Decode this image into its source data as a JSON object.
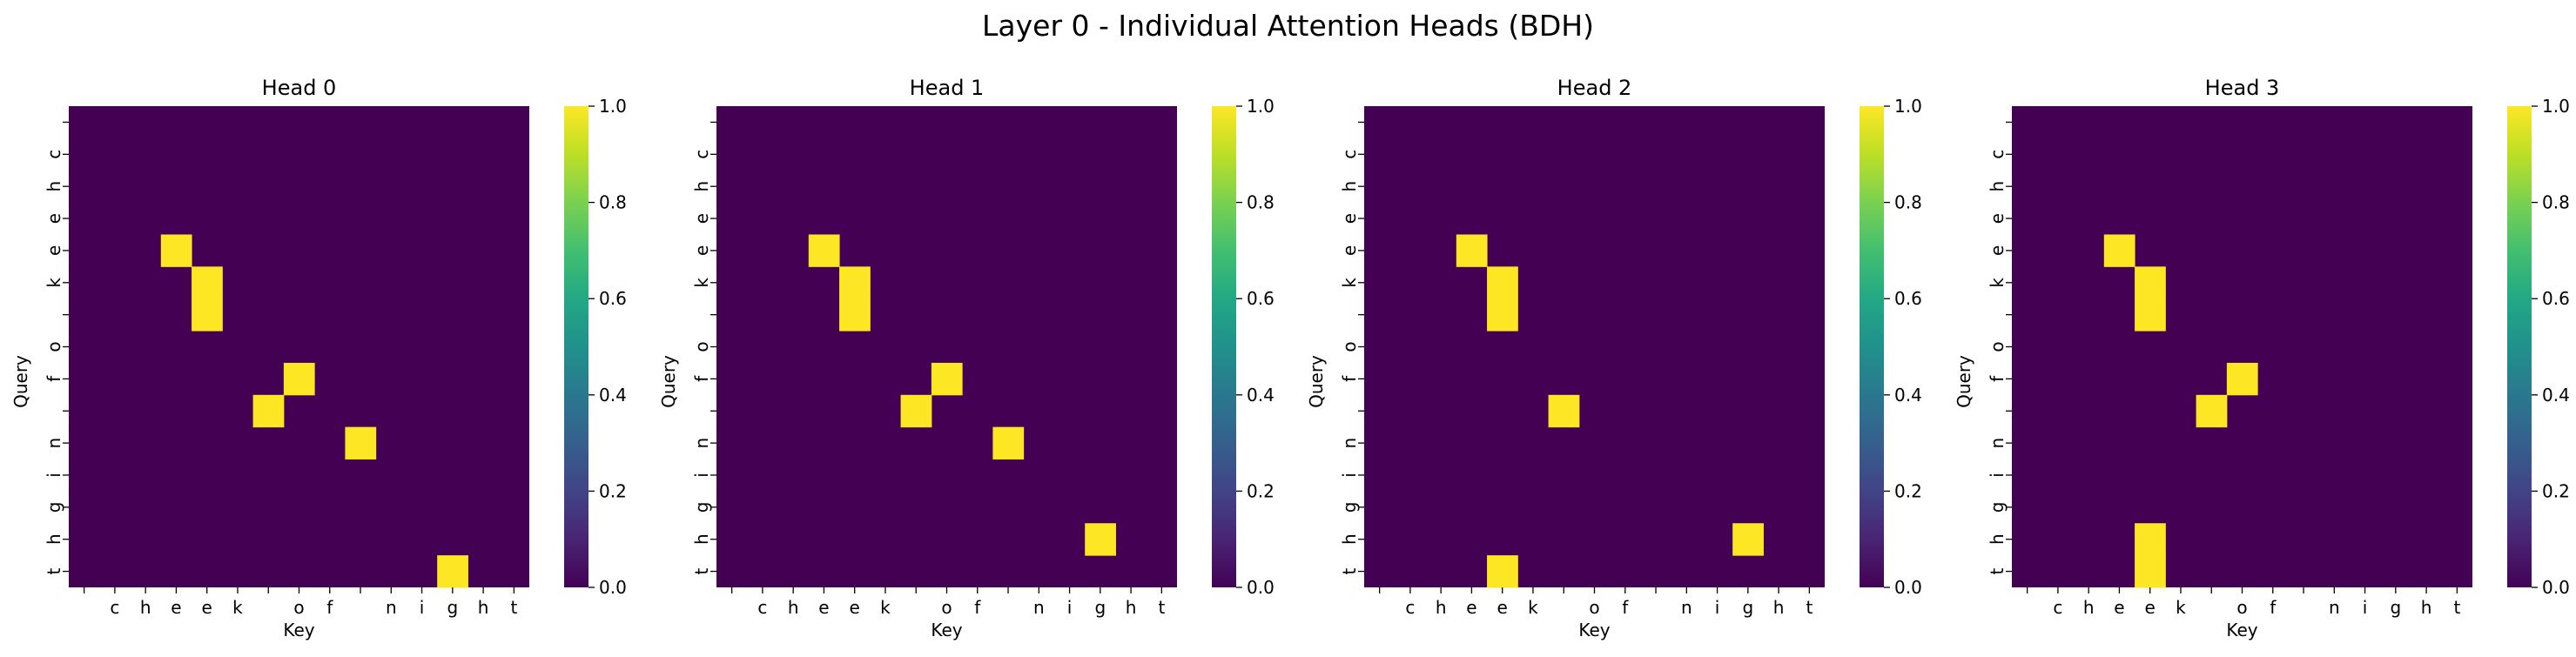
{
  "title": "Layer 0 - Individual Attention Heads (BDH)",
  "chart_data": [
    {
      "type": "heatmap",
      "title": "Head 0",
      "xlabel": "Key",
      "ylabel": "Query",
      "x_tokens": [
        " ",
        "c",
        "h",
        "e",
        "e",
        "k",
        " ",
        "o",
        "f",
        " ",
        "n",
        "i",
        "g",
        "h",
        "t"
      ],
      "y_tokens": [
        " ",
        "c",
        "h",
        "e",
        "e",
        "k",
        " ",
        "o",
        "f",
        " ",
        "n",
        "i",
        "g",
        "h",
        "t"
      ],
      "colorbar": {
        "colormap": "viridis",
        "range": [
          0.0,
          1.0
        ],
        "ticks": [
          "0.0",
          "0.2",
          "0.4",
          "0.6",
          "0.8",
          "1.0"
        ]
      },
      "nonzero_cells": [
        {
          "query": 4,
          "key": 3,
          "value": 1.0
        },
        {
          "query": 5,
          "key": 4,
          "value": 1.0
        },
        {
          "query": 6,
          "key": 4,
          "value": 1.0
        },
        {
          "query": 8,
          "key": 7,
          "value": 1.0
        },
        {
          "query": 9,
          "key": 6,
          "value": 1.0
        },
        {
          "query": 10,
          "key": 9,
          "value": 1.0
        },
        {
          "query": 14,
          "key": 12,
          "value": 1.0
        }
      ]
    },
    {
      "type": "heatmap",
      "title": "Head 1",
      "xlabel": "Key",
      "ylabel": "Query",
      "x_tokens": [
        " ",
        "c",
        "h",
        "e",
        "e",
        "k",
        " ",
        "o",
        "f",
        " ",
        "n",
        "i",
        "g",
        "h",
        "t"
      ],
      "y_tokens": [
        " ",
        "c",
        "h",
        "e",
        "e",
        "k",
        " ",
        "o",
        "f",
        " ",
        "n",
        "i",
        "g",
        "h",
        "t"
      ],
      "colorbar": {
        "colormap": "viridis",
        "range": [
          0.0,
          1.0
        ],
        "ticks": [
          "0.0",
          "0.2",
          "0.4",
          "0.6",
          "0.8",
          "1.0"
        ]
      },
      "nonzero_cells": [
        {
          "query": 4,
          "key": 3,
          "value": 1.0
        },
        {
          "query": 5,
          "key": 4,
          "value": 1.0
        },
        {
          "query": 6,
          "key": 4,
          "value": 1.0
        },
        {
          "query": 8,
          "key": 7,
          "value": 1.0
        },
        {
          "query": 9,
          "key": 6,
          "value": 1.0
        },
        {
          "query": 10,
          "key": 9,
          "value": 1.0
        },
        {
          "query": 13,
          "key": 12,
          "value": 1.0
        }
      ]
    },
    {
      "type": "heatmap",
      "title": "Head 2",
      "xlabel": "Key",
      "ylabel": "Query",
      "x_tokens": [
        " ",
        "c",
        "h",
        "e",
        "e",
        "k",
        " ",
        "o",
        "f",
        " ",
        "n",
        "i",
        "g",
        "h",
        "t"
      ],
      "y_tokens": [
        " ",
        "c",
        "h",
        "e",
        "e",
        "k",
        " ",
        "o",
        "f",
        " ",
        "n",
        "i",
        "g",
        "h",
        "t"
      ],
      "colorbar": {
        "colormap": "viridis",
        "range": [
          0.0,
          1.0
        ],
        "ticks": [
          "0.0",
          "0.2",
          "0.4",
          "0.6",
          "0.8",
          "1.0"
        ]
      },
      "nonzero_cells": [
        {
          "query": 4,
          "key": 3,
          "value": 1.0
        },
        {
          "query": 5,
          "key": 4,
          "value": 1.0
        },
        {
          "query": 6,
          "key": 4,
          "value": 1.0
        },
        {
          "query": 9,
          "key": 6,
          "value": 1.0
        },
        {
          "query": 13,
          "key": 12,
          "value": 1.0
        },
        {
          "query": 14,
          "key": 4,
          "value": 1.0
        }
      ]
    },
    {
      "type": "heatmap",
      "title": "Head 3",
      "xlabel": "Key",
      "ylabel": "Query",
      "x_tokens": [
        " ",
        "c",
        "h",
        "e",
        "e",
        "k",
        " ",
        "o",
        "f",
        " ",
        "n",
        "i",
        "g",
        "h",
        "t"
      ],
      "y_tokens": [
        " ",
        "c",
        "h",
        "e",
        "e",
        "k",
        " ",
        "o",
        "f",
        " ",
        "n",
        "i",
        "g",
        "h",
        "t"
      ],
      "colorbar": {
        "colormap": "viridis",
        "range": [
          0.0,
          1.0
        ],
        "ticks": [
          "0.0",
          "0.2",
          "0.4",
          "0.6",
          "0.8",
          "1.0"
        ]
      },
      "nonzero_cells": [
        {
          "query": 4,
          "key": 3,
          "value": 1.0
        },
        {
          "query": 5,
          "key": 4,
          "value": 1.0
        },
        {
          "query": 6,
          "key": 4,
          "value": 1.0
        },
        {
          "query": 8,
          "key": 7,
          "value": 1.0
        },
        {
          "query": 9,
          "key": 6,
          "value": 1.0
        },
        {
          "query": 13,
          "key": 4,
          "value": 1.0
        },
        {
          "query": 14,
          "key": 4,
          "value": 1.0
        }
      ]
    }
  ]
}
